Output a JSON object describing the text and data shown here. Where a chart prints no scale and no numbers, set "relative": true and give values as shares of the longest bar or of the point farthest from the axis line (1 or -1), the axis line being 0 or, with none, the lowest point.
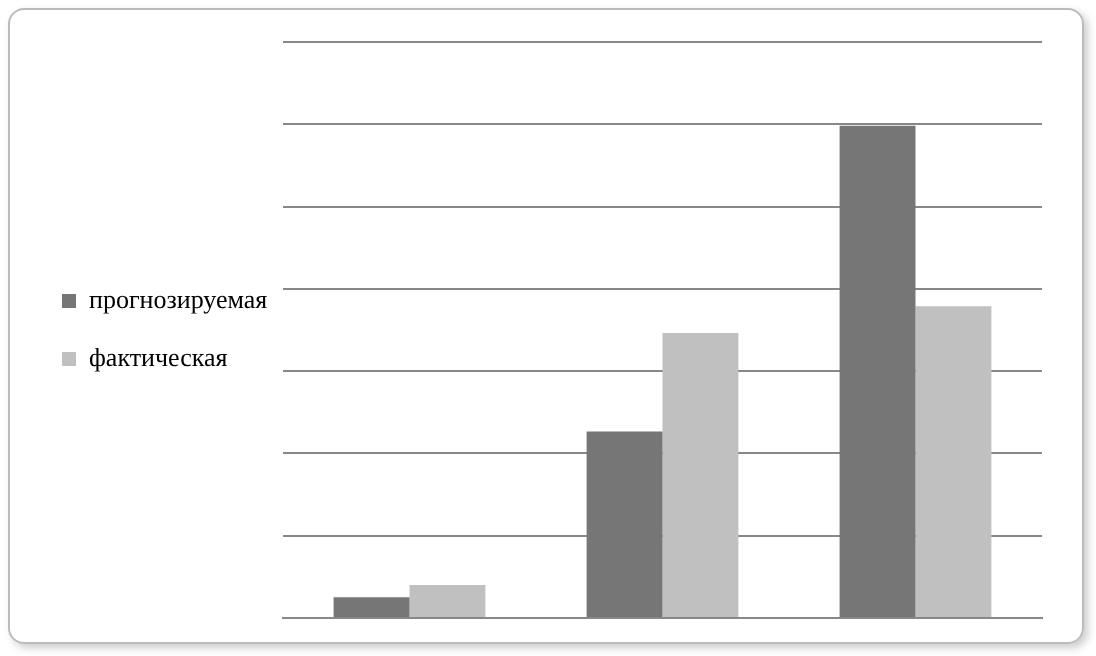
{
  "chart_data": {
    "type": "bar",
    "relative": true,
    "categories": [
      null,
      null,
      null
    ],
    "series": [
      {
        "name": "прогнозируемая",
        "color": "#767676",
        "values": [
          0.042,
          0.379,
          1
        ]
      },
      {
        "name": "фактическая",
        "color": "#c0c0c0",
        "values": [
          0.067,
          0.579,
          0.633
        ]
      }
    ],
    "grid": "y",
    "legend": "left"
  }
}
